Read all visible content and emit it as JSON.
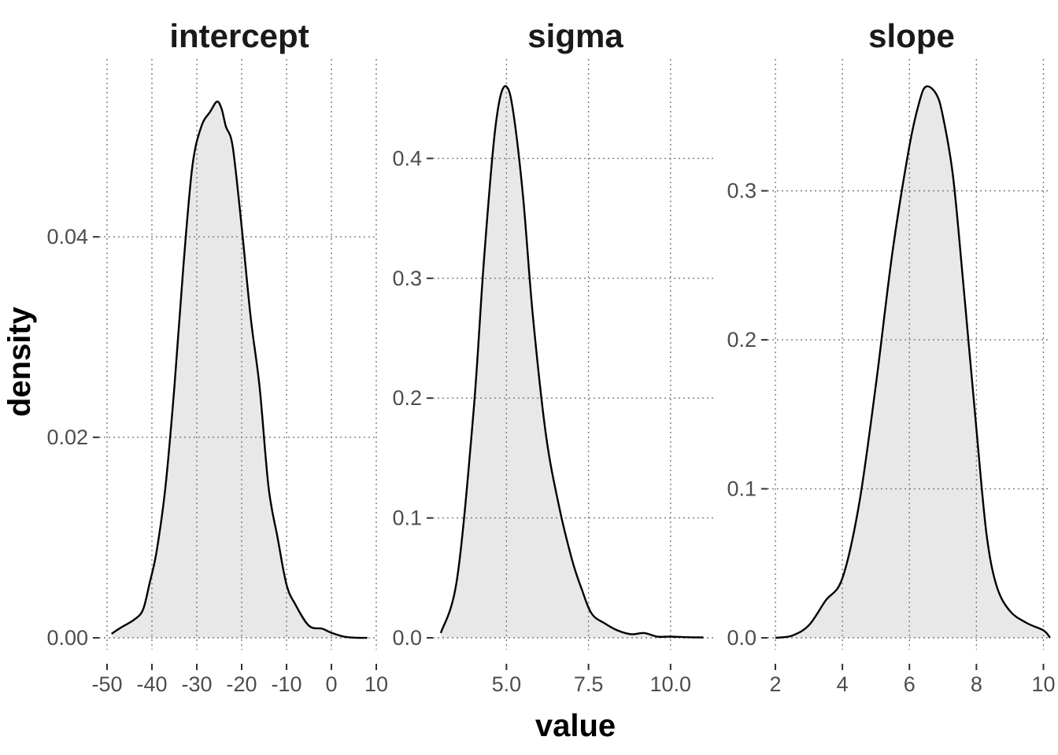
{
  "chart_data": {
    "type": "area",
    "xlabel": "value",
    "ylabel": "density",
    "facets": [
      {
        "title": "intercept",
        "xlim": [
          -50,
          10
        ],
        "ylim": [
          0,
          0.055
        ],
        "xticks": [
          -50,
          -40,
          -30,
          -20,
          -10,
          0,
          10
        ],
        "xtick_labels": [
          "-50",
          "-40",
          "-30",
          "-20",
          "-10",
          "0",
          "10"
        ],
        "yticks": [
          0,
          0.02,
          0.04
        ],
        "ytick_labels": [
          "0.00",
          "0.02",
          "0.04"
        ],
        "x": [
          -49.0,
          -47.0,
          -44.0,
          -42.0,
          -40.5,
          -39.0,
          -37.0,
          -35.0,
          -33.0,
          -31.0,
          -29.0,
          -27.0,
          -25.5,
          -24.5,
          -23.5,
          -22.0,
          -20.0,
          -18.0,
          -16.0,
          -14.0,
          -12.0,
          -10.0,
          -8.0,
          -5.0,
          -2.0,
          0.0,
          3.0,
          6.0,
          8.0
        ],
        "y": [
          0.0004,
          0.001,
          0.0018,
          0.0028,
          0.0055,
          0.0085,
          0.015,
          0.025,
          0.037,
          0.047,
          0.051,
          0.0525,
          0.0535,
          0.0528,
          0.051,
          0.049,
          0.041,
          0.032,
          0.025,
          0.015,
          0.01,
          0.0053,
          0.0033,
          0.0012,
          0.0009,
          0.0005,
          0.0001,
          0.0,
          0.0
        ]
      },
      {
        "title": "sigma",
        "xlim": [
          3.0,
          11.3
        ],
        "ylim": [
          0,
          0.46
        ],
        "xticks": [
          5.0,
          7.5,
          10.0
        ],
        "xtick_labels": [
          "5.0",
          "7.5",
          "10.0"
        ],
        "yticks": [
          0,
          0.1,
          0.2,
          0.3,
          0.4
        ],
        "ytick_labels": [
          "0.0",
          "0.1",
          "0.2",
          "0.3",
          "0.4"
        ],
        "x": [
          3.0,
          3.5,
          4.0,
          4.3,
          4.6,
          4.8,
          5.0,
          5.2,
          5.5,
          5.8,
          6.2,
          6.6,
          7.0,
          7.3,
          7.6,
          8.0,
          8.4,
          8.8,
          9.2,
          9.6,
          10.0,
          10.5,
          11.0
        ],
        "y": [
          0.004,
          0.05,
          0.19,
          0.31,
          0.41,
          0.45,
          0.46,
          0.44,
          0.37,
          0.27,
          0.17,
          0.11,
          0.065,
          0.04,
          0.02,
          0.012,
          0.006,
          0.003,
          0.004,
          0.001,
          0.001,
          0.0005,
          0.0003
        ]
      },
      {
        "title": "slope",
        "xlim": [
          2,
          10.2
        ],
        "ylim": [
          0,
          0.37
        ],
        "xticks": [
          2,
          4,
          6,
          8,
          10
        ],
        "xtick_labels": [
          "2",
          "4",
          "6",
          "8",
          "10"
        ],
        "yticks": [
          0,
          0.1,
          0.2,
          0.3
        ],
        "ytick_labels": [
          "0.0",
          "0.1",
          "0.2",
          "0.3"
        ],
        "x": [
          2.0,
          2.5,
          3.0,
          3.5,
          4.0,
          4.5,
          5.0,
          5.5,
          6.0,
          6.3,
          6.5,
          6.8,
          7.0,
          7.3,
          7.6,
          8.0,
          8.3,
          8.6,
          9.0,
          9.5,
          10.0,
          10.2
        ],
        "y": [
          0.0,
          0.0015,
          0.0085,
          0.025,
          0.04,
          0.09,
          0.17,
          0.26,
          0.33,
          0.36,
          0.37,
          0.365,
          0.35,
          0.31,
          0.24,
          0.14,
          0.07,
          0.035,
          0.018,
          0.01,
          0.005,
          0.0
        ]
      }
    ]
  }
}
